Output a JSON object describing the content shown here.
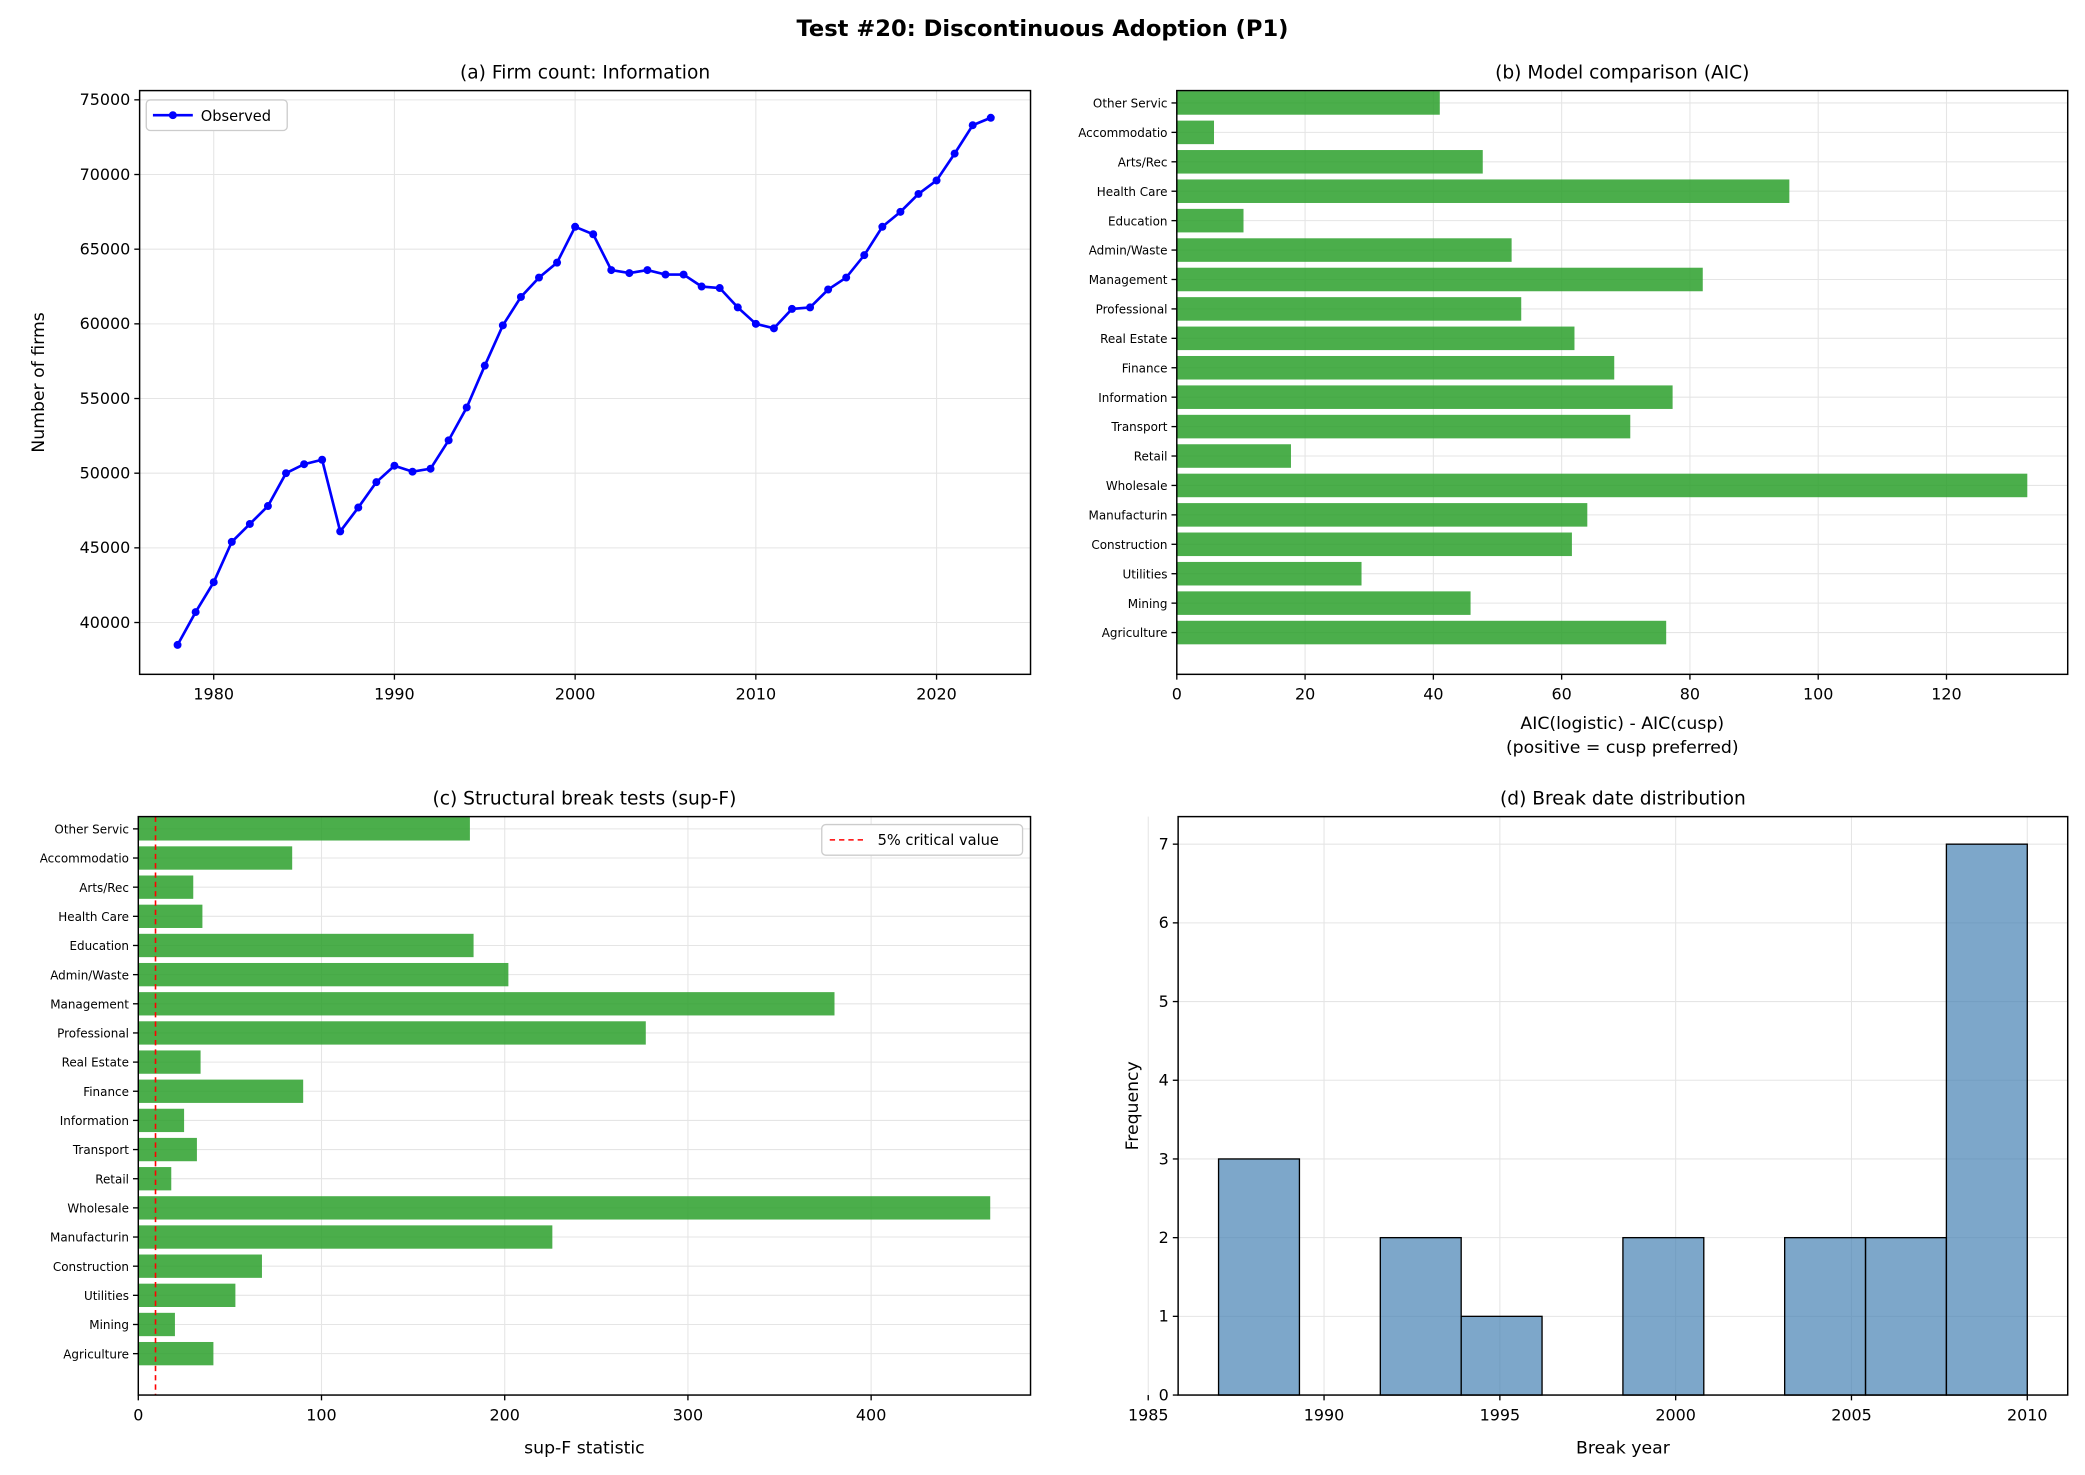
{
  "title": "Test #20: Discontinuous Adoption (P1)",
  "chart_data": [
    {
      "type": "line",
      "title": "(a) Firm count: Information",
      "xlabel": "",
      "ylabel": "Number of firms",
      "xlim": [
        1975.9,
        2025.2
      ],
      "ylim": [
        36530,
        75620
      ],
      "xticks": [
        1980,
        1990,
        2000,
        2010,
        2020
      ],
      "yticks": [
        40000,
        45000,
        50000,
        55000,
        60000,
        65000,
        70000,
        75000
      ],
      "grid": true,
      "legend": "upper-left",
      "color": "#0000ff",
      "series": [
        {
          "name": "Observed",
          "x": [
            1978,
            1979,
            1980,
            1981,
            1982,
            1983,
            1984,
            1985,
            1986,
            1987,
            1988,
            1989,
            1990,
            1991,
            1992,
            1993,
            1994,
            1995,
            1996,
            1997,
            1998,
            1999,
            2000,
            2001,
            2002,
            2003,
            2004,
            2005,
            2006,
            2007,
            2008,
            2009,
            2010,
            2011,
            2012,
            2013,
            2014,
            2015,
            2016,
            2017,
            2018,
            2019,
            2020,
            2021,
            2022,
            2023
          ],
          "y": [
            38500,
            40700,
            42700,
            45400,
            46600,
            47800,
            50000,
            50600,
            50900,
            46100,
            47700,
            49400,
            50500,
            50100,
            50300,
            52200,
            54400,
            57200,
            59900,
            61800,
            63100,
            64100,
            66500,
            66000,
            63600,
            63400,
            63600,
            63300,
            63300,
            62500,
            62400,
            61100,
            60000,
            59700,
            61000,
            61100,
            62300,
            63100,
            64600,
            66500,
            67500,
            68700,
            69600,
            71400,
            73300,
            73800
          ]
        }
      ]
    },
    {
      "type": "bar",
      "orientation": "horizontal",
      "title": "(b) Model comparison (AIC)",
      "xlabel": "AIC(logistic) - AIC(cusp)",
      "xlabel2": "(positive = cusp preferred)",
      "xlim": [
        0,
        138.9
      ],
      "xticks": [
        0,
        20,
        40,
        60,
        80,
        100,
        120
      ],
      "grid": true,
      "color": "#2ca02c",
      "categories": [
        "Agriculture",
        "Mining",
        "Utilities",
        "Construction",
        "Manufacturin",
        "Wholesale",
        "Retail",
        "Transport",
        "Information",
        "Finance",
        "Real Estate",
        "Professional",
        "Management",
        "Admin/Waste",
        "Education",
        "Health Care",
        "Arts/Rec",
        "Accommodatio",
        "Other Servic"
      ],
      "values": [
        76.3,
        45.8,
        28.8,
        61.6,
        64.0,
        132.6,
        17.8,
        70.7,
        77.3,
        68.2,
        62.0,
        53.7,
        82.0,
        52.2,
        10.4,
        95.5,
        47.7,
        5.8,
        41.0
      ]
    },
    {
      "type": "bar",
      "orientation": "horizontal",
      "title": "(c) Structural break tests (sup-F)",
      "xlabel": "sup-F statistic",
      "xlim": [
        0,
        487
      ],
      "xticks": [
        0,
        100,
        200,
        300,
        400
      ],
      "grid": true,
      "legend": "upper-right",
      "color": "#2ca02c",
      "critical_value": 9.4,
      "critical_label": "5% critical value",
      "critical_color": "#ff0000",
      "categories": [
        "Agriculture",
        "Mining",
        "Utilities",
        "Construction",
        "Manufacturin",
        "Wholesale",
        "Retail",
        "Transport",
        "Information",
        "Finance",
        "Real Estate",
        "Professional",
        "Management",
        "Admin/Waste",
        "Education",
        "Health Care",
        "Arts/Rec",
        "Accommodatio",
        "Other Servic"
      ],
      "values": [
        41,
        20,
        53,
        67.5,
        226,
        465,
        18,
        32,
        25,
        90,
        34,
        277,
        380,
        202,
        183,
        35,
        30,
        84,
        181
      ]
    },
    {
      "type": "histogram",
      "title": "(d) Break date distribution",
      "xlabel": "Break year",
      "ylabel": "Frequency",
      "xlim": [
        1985.85,
        2011.15
      ],
      "ylim": [
        0,
        7.35
      ],
      "xticks": [
        1985,
        1990,
        1995,
        2000,
        2005,
        2010
      ],
      "yticks": [
        0,
        1,
        2,
        3,
        4,
        5,
        6,
        7
      ],
      "grid": true,
      "color": "#4682b4",
      "bin_edges": [
        1987,
        1989.3,
        1991.6,
        1993.9,
        1996.2,
        1998.5,
        2000.8,
        2003.1,
        2005.4,
        2007.7,
        2010
      ],
      "counts": [
        3,
        0,
        2,
        1,
        0,
        2,
        0,
        2,
        2,
        7
      ]
    }
  ]
}
